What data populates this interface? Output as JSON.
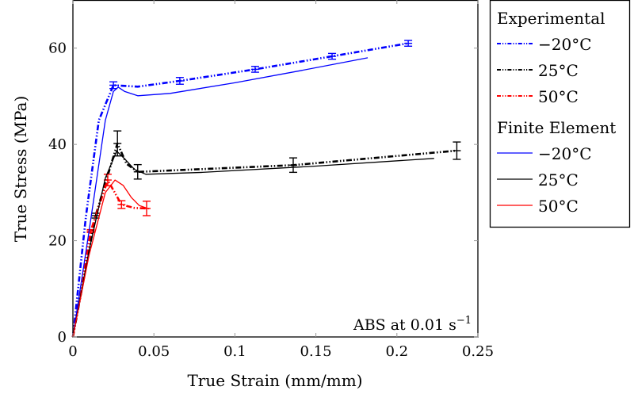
{
  "chart_data": {
    "type": "line",
    "xlabel": "True Strain (mm/mm)",
    "ylabel": "True Stress (MPa)",
    "xlim": [
      0,
      0.25
    ],
    "ylim": [
      0,
      70
    ],
    "xticks": [
      "0",
      "0.05",
      "0.1",
      "0.15",
      "0.2",
      "0.25"
    ],
    "xtick_values": [
      0,
      0.05,
      0.1,
      0.15,
      0.2,
      0.25
    ],
    "yticks": [
      "0",
      "20",
      "40",
      "60"
    ],
    "ytick_values": [
      0,
      20,
      40,
      60
    ],
    "grid": false,
    "legend_placement": "outside-right",
    "annotation": "ABS at 0.01 s",
    "annotation_sup": "−1",
    "legend_groups": [
      {
        "title": "Experimental",
        "style": "dash-dot-dot",
        "entries": [
          "−20°C",
          "25°C",
          "50°C"
        ]
      },
      {
        "title": "Finite Element",
        "style": "solid",
        "entries": [
          "−20°C",
          "25°C",
          "50°C"
        ]
      }
    ],
    "series": [
      {
        "group": "Experimental",
        "name": "−20°C",
        "color": "#0000ff",
        "style": "dash-dot-dot",
        "x": [
          0,
          0.008,
          0.016,
          0.025,
          0.04,
          0.066,
          0.1125,
          0.16,
          0.207
        ],
        "y": [
          0,
          25,
          45,
          52.3,
          52,
          53.2,
          55.6,
          58.3,
          61
        ],
        "errors": [
          null,
          null,
          null,
          0.7,
          null,
          0.7,
          0.6,
          0.6,
          0.6
        ]
      },
      {
        "group": "Experimental",
        "name": "25°C",
        "color": "#000000",
        "style": "dash-dot-dot",
        "x": [
          0,
          0.014,
          0.0275,
          0.033,
          0.04,
          0.136,
          0.237
        ],
        "y": [
          0,
          25.2,
          40.2,
          36,
          34.3,
          35.7,
          38.7
        ],
        "errors": [
          null,
          0.5,
          2.6,
          null,
          1.5,
          1.5,
          1.8
        ]
      },
      {
        "group": "Experimental",
        "name": "50°C",
        "color": "#ff0000",
        "style": "dash-dot-dot",
        "x": [
          0,
          0.011,
          0.0215,
          0.03,
          0.038,
          0.0455
        ],
        "y": [
          0,
          22,
          32.6,
          27.5,
          26.8,
          26.7
        ],
        "errors": [
          null,
          0.3,
          1.2,
          0.8,
          null,
          1.5
        ]
      },
      {
        "group": "Finite Element",
        "name": "−20°C",
        "color": "#0000ff",
        "style": "solid",
        "x": [
          0,
          0.01,
          0.02,
          0.025,
          0.028,
          0.032,
          0.04,
          0.06,
          0.1,
          0.14,
          0.182
        ],
        "y": [
          0,
          22,
          45,
          51,
          51.9,
          51,
          50.1,
          50.6,
          52.8,
          55.3,
          58
        ]
      },
      {
        "group": "Finite Element",
        "name": "25°C",
        "color": "#000000",
        "style": "solid",
        "x": [
          0,
          0.01,
          0.02,
          0.027,
          0.032,
          0.038,
          0.045,
          0.08,
          0.15,
          0.223
        ],
        "y": [
          0,
          18,
          33,
          38.6,
          37,
          34.8,
          33.8,
          34.2,
          35.5,
          37.1
        ]
      },
      {
        "group": "Finite Element",
        "name": "50°C",
        "color": "#ff0000",
        "style": "solid",
        "x": [
          0,
          0.01,
          0.02,
          0.026,
          0.031,
          0.036,
          0.041,
          0.047
        ],
        "y": [
          0,
          17,
          30,
          32.6,
          31.5,
          29,
          27.3,
          26.6
        ]
      }
    ]
  }
}
